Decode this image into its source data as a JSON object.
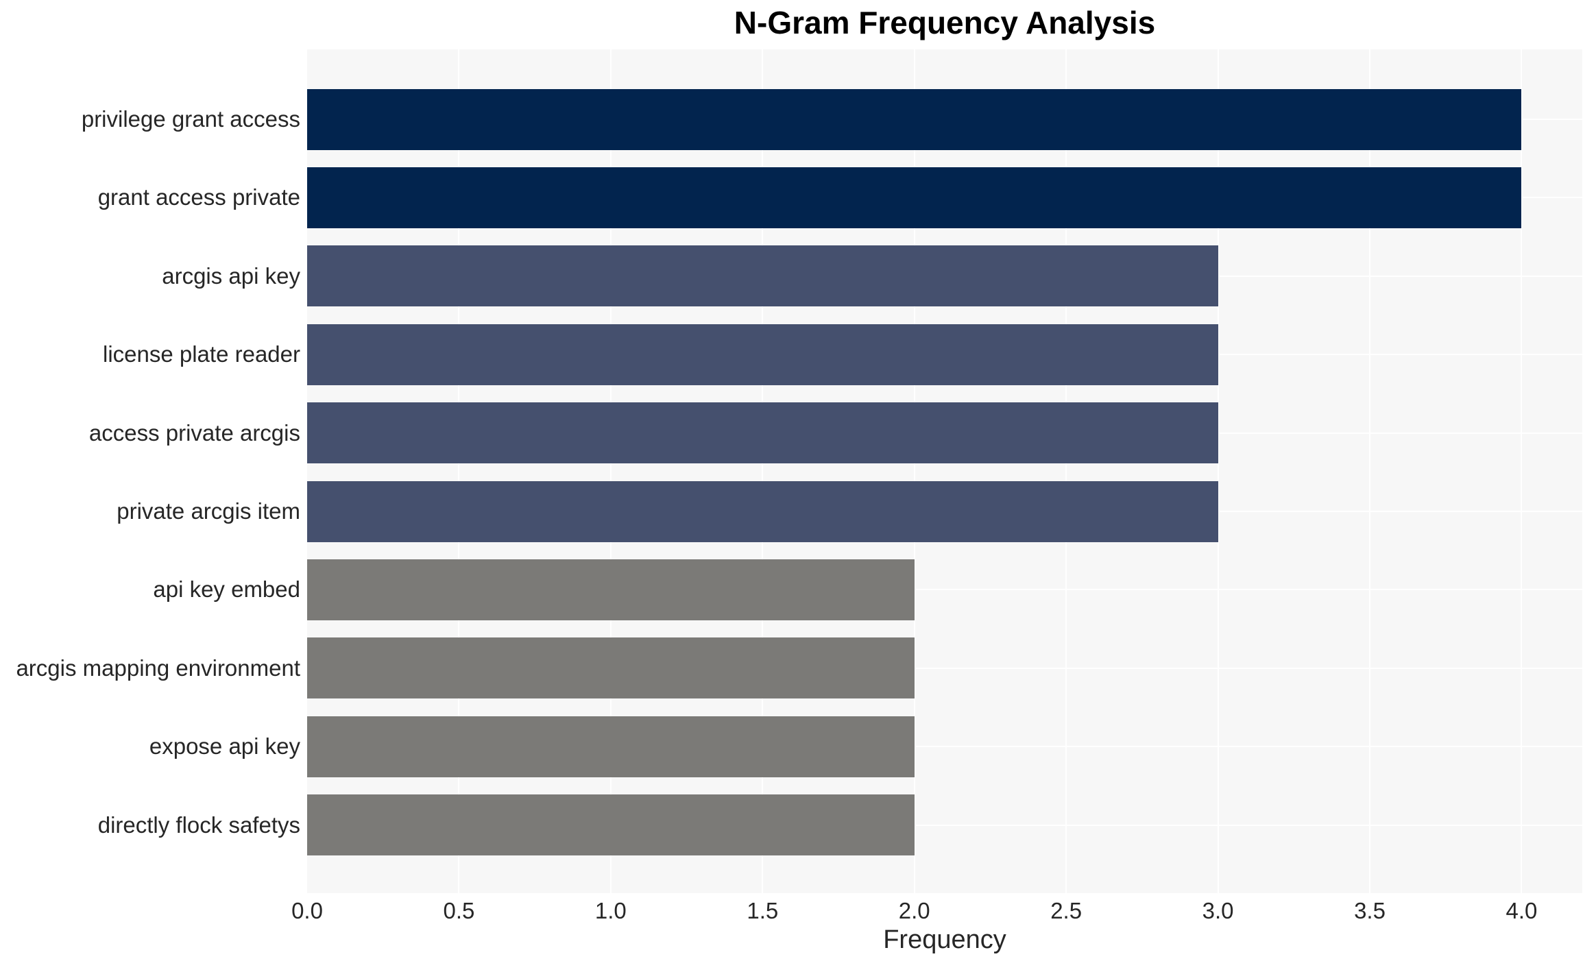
{
  "chart_data": {
    "type": "bar",
    "orientation": "horizontal",
    "title": "N-Gram Frequency Analysis",
    "xlabel": "Frequency",
    "ylabel": "",
    "categories": [
      "privilege grant access",
      "grant access private",
      "arcgis api key",
      "license plate reader",
      "access private arcgis",
      "private arcgis item",
      "api key embed",
      "arcgis mapping environment",
      "expose api key",
      "directly flock safetys"
    ],
    "values": [
      4,
      4,
      3,
      3,
      3,
      3,
      2,
      2,
      2,
      2
    ],
    "bar_colors": [
      "#02244E",
      "#02244E",
      "#45506E",
      "#45506E",
      "#45506E",
      "#45506E",
      "#7B7A77",
      "#7B7A77",
      "#7B7A77",
      "#7B7A77"
    ],
    "xlim": [
      0,
      4.2
    ],
    "xticks": [
      0.0,
      0.5,
      1.0,
      1.5,
      2.0,
      2.5,
      3.0,
      3.5,
      4.0
    ],
    "xtick_labels": [
      "0.0",
      "0.5",
      "1.0",
      "1.5",
      "2.0",
      "2.5",
      "3.0",
      "3.5",
      "4.0"
    ],
    "grid": true,
    "legend": false
  },
  "colors": {
    "navy": "#02244E",
    "slate": "#45506E",
    "gray": "#7B7A77",
    "plot_background": "#F7F7F7",
    "gridline": "#FFFFFF",
    "text": "#262626",
    "title_text": "#000000",
    "figure_background": "#FFFFFF"
  }
}
